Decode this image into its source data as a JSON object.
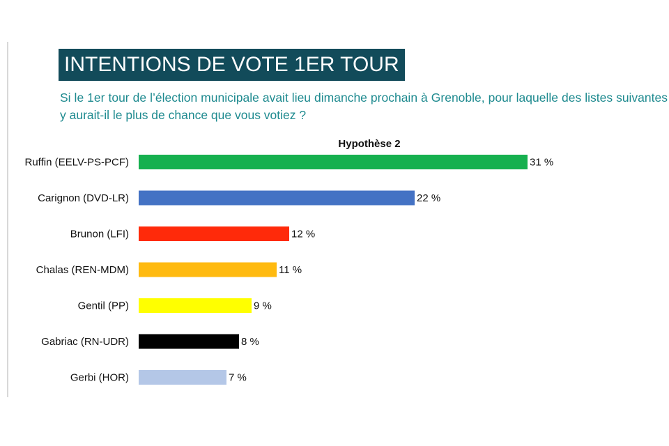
{
  "header": {
    "title": "INTENTIONS DE VOTE 1ER TOUR",
    "question": "Si le 1er tour de l’élection municipale avait lieu dimanche prochain à Grenoble, pour laquelle des listes suivantes y aurait-il le plus de chance que vous votiez ?"
  },
  "chart_data": {
    "type": "bar",
    "orientation": "horizontal",
    "title": "Hypothèse 2",
    "categories": [
      "Ruffin (EELV-PS-PCF)",
      "Carignon (DVD-LR)",
      "Brunon (LFI)",
      "Chalas (REN-MDM)",
      "Gentil (PP)",
      "Gabriac (RN-UDR)",
      "Gerbi (HOR)"
    ],
    "values": [
      31,
      22,
      12,
      11,
      9,
      8,
      7
    ],
    "value_labels": [
      "31 %",
      "22 %",
      "12 %",
      "11 %",
      "9 %",
      "8 %",
      "7 %"
    ],
    "colors": [
      "#16b04f",
      "#4472c4",
      "#ff2a0a",
      "#ffba10",
      "#ffff00",
      "#000000",
      "#b4c7e7"
    ],
    "unit": "%",
    "xlim": [
      0,
      31
    ],
    "grid": false,
    "legend": "none"
  }
}
